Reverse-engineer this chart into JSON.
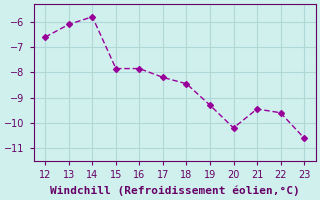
{
  "x": [
    12,
    13,
    14,
    15,
    16,
    17,
    18,
    19,
    20,
    21,
    22,
    23
  ],
  "y": [
    -6.6,
    -6.1,
    -5.8,
    -7.85,
    -7.85,
    -8.2,
    -8.45,
    -9.3,
    -10.2,
    -9.45,
    -9.6,
    -10.6
  ],
  "line_color": "#990099",
  "marker": "D",
  "marker_size": 3,
  "bg_color": "#d0f0ee",
  "grid_color": "#b0d8d8",
  "xlabel": "Windchill (Refroidissement éolien,°C)",
  "xlabel_color": "#660066",
  "xlabel_fontsize": 8,
  "tick_color": "#660066",
  "tick_fontsize": 7,
  "ylim": [
    -11.5,
    -5.3
  ],
  "xlim": [
    11.5,
    23.5
  ],
  "yticks": [
    -6,
    -7,
    -8,
    -9,
    -10,
    -11
  ],
  "xticks": [
    12,
    13,
    14,
    15,
    16,
    17,
    18,
    19,
    20,
    21,
    22,
    23
  ]
}
